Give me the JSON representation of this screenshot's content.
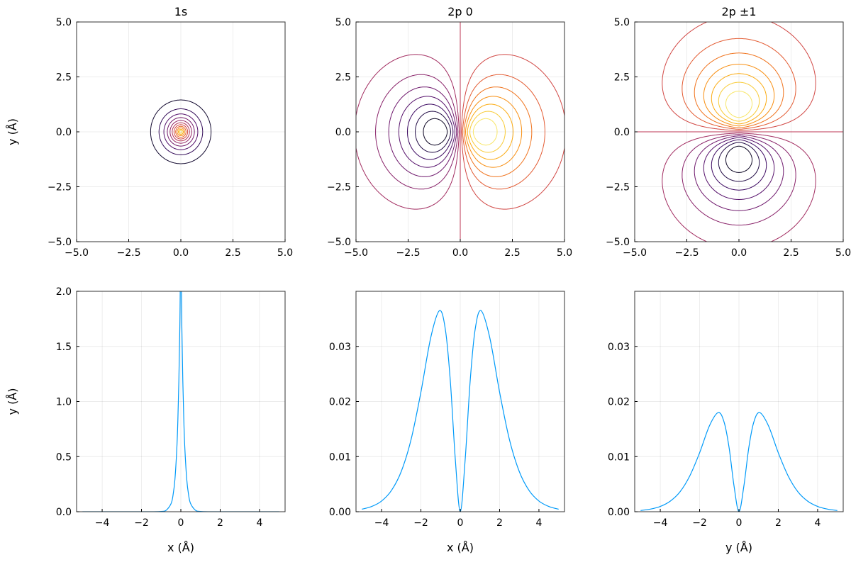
{
  "chart_data": [
    {
      "type": "contour",
      "title": "1s",
      "xlabel": "",
      "ylabel": "y (Å)",
      "xlim": [
        -5,
        5
      ],
      "ylim": [
        -5,
        5
      ],
      "xticks": [
        "−5.0",
        "−2.5",
        "0.0",
        "2.5",
        "5.0"
      ],
      "yticks": [
        "−5.0",
        "−2.5",
        "0.0",
        "2.5",
        "5.0"
      ],
      "tick_values": [
        -5,
        -2.5,
        0,
        2.5,
        5
      ],
      "model": {
        "kind": "s",
        "scale": 0.577
      },
      "levels": [
        0.081,
        0.163,
        0.244,
        0.325,
        0.407,
        0.488,
        0.569,
        0.65,
        0.732,
        0.813,
        0.894,
        0.976
      ],
      "colormap": "inferno",
      "color_range": [
        0,
        1
      ],
      "grid": true
    },
    {
      "type": "contour",
      "title": "2p 0",
      "xlabel": "",
      "ylabel": "",
      "xlim": [
        -5,
        5
      ],
      "ylim": [
        -5,
        5
      ],
      "xticks": [
        "−5.0",
        "−2.5",
        "0.0",
        "2.5",
        "5.0"
      ],
      "yticks": [
        "−5.0",
        "−2.5",
        "0.0",
        "2.5",
        "5.0"
      ],
      "tick_values": [
        -5,
        -2.5,
        0,
        2.5,
        5
      ],
      "model": {
        "kind": "px",
        "scale": 1.1
      },
      "levels": [
        -0.875,
        -0.75,
        -0.625,
        -0.5,
        -0.375,
        -0.25,
        -0.125,
        0,
        0.125,
        0.25,
        0.375,
        0.5,
        0.625,
        0.75,
        0.875
      ],
      "colormap": "inferno",
      "color_range": [
        -1,
        1
      ],
      "grid": true
    },
    {
      "type": "contour",
      "title": "2p ±1",
      "xlabel": "",
      "ylabel": "",
      "xlim": [
        -5,
        5
      ],
      "ylim": [
        -5,
        5
      ],
      "xticks": [
        "−5.0",
        "−2.5",
        "0.0",
        "2.5",
        "5.0"
      ],
      "yticks": [
        "−5.0",
        "−2.5",
        "0.0",
        "2.5",
        "5.0"
      ],
      "tick_values": [
        -5,
        -2.5,
        0,
        2.5,
        5
      ],
      "model": {
        "kind": "py",
        "scale": 1.15
      },
      "levels": [
        -0.875,
        -0.75,
        -0.625,
        -0.5,
        -0.375,
        -0.25,
        -0.125,
        0,
        0.125,
        0.25,
        0.375,
        0.5,
        0.625,
        0.75,
        0.875
      ],
      "colormap": "inferno",
      "color_range": [
        -1,
        1
      ],
      "grid": true
    },
    {
      "type": "line",
      "title": "",
      "xlabel": "x (Å)",
      "ylabel": "y (Å)",
      "xlim": [
        -5.3,
        5.3
      ],
      "ylim": [
        0,
        2
      ],
      "xtick_values": [
        -4,
        -2,
        0,
        2,
        4
      ],
      "xticks": [
        "−4",
        "−2",
        "0",
        "2",
        "4"
      ],
      "ytick_values": [
        0,
        0.5,
        1,
        1.5,
        2
      ],
      "yticks": [
        "0.0",
        "0.5",
        "1.0",
        "1.5",
        "2.0"
      ],
      "color": "#009af9",
      "x": [
        -5,
        -4,
        -3,
        -2,
        -1.5,
        -1,
        -0.75,
        -0.5,
        -0.4,
        -0.3,
        -0.2,
        -0.15,
        -0.1,
        -0.05,
        0,
        0.05,
        0.1,
        0.15,
        0.2,
        0.3,
        0.4,
        0.5,
        0.75,
        1,
        1.5,
        2,
        3,
        4,
        5
      ],
      "y": [
        0,
        0,
        0,
        0,
        0.0001,
        0.0022,
        0.0126,
        0.072,
        0.146,
        0.294,
        0.59,
        0.84,
        1.19,
        1.69,
        2.4,
        1.69,
        1.19,
        0.84,
        0.59,
        0.294,
        0.146,
        0.072,
        0.0126,
        0.0022,
        0.0001,
        0,
        0,
        0,
        0
      ]
    },
    {
      "type": "line",
      "title": "",
      "xlabel": "x (Å)",
      "ylabel": "",
      "xlim": [
        -5.3,
        5.3
      ],
      "ylim": [
        0,
        0.04
      ],
      "xtick_values": [
        -4,
        -2,
        0,
        2,
        4
      ],
      "xticks": [
        "−4",
        "−2",
        "0",
        "2",
        "4"
      ],
      "ytick_values": [
        0,
        0.01,
        0.02,
        0.03
      ],
      "yticks": [
        "0.00",
        "0.01",
        "0.02",
        "0.03"
      ],
      "color": "#009af9",
      "x": [
        -5,
        -4.5,
        -4,
        -3.5,
        -3,
        -2.5,
        -2,
        -1.5,
        -1.05,
        -0.75,
        -0.5,
        -0.25,
        0,
        0.25,
        0.5,
        0.75,
        1.05,
        1.5,
        2,
        2.5,
        3,
        3.5,
        4,
        4.5,
        5
      ],
      "y": [
        0.00045,
        0.00095,
        0.00194,
        0.00385,
        0.0073,
        0.0131,
        0.0217,
        0.0316,
        0.0365,
        0.0329,
        0.0235,
        0.00945,
        0,
        0.00945,
        0.0235,
        0.0329,
        0.0365,
        0.0316,
        0.0217,
        0.0131,
        0.0073,
        0.00385,
        0.00194,
        0.00095,
        0.00045
      ]
    },
    {
      "type": "line",
      "title": "",
      "xlabel": "y (Å)",
      "ylabel": "",
      "xlim": [
        -5.3,
        5.3
      ],
      "ylim": [
        0,
        0.04
      ],
      "xtick_values": [
        -4,
        -2,
        0,
        2,
        4
      ],
      "xticks": [
        "−4",
        "−2",
        "0",
        "2",
        "4"
      ],
      "ytick_values": [
        0,
        0.01,
        0.02,
        0.03
      ],
      "yticks": [
        "0.00",
        "0.01",
        "0.02",
        "0.03"
      ],
      "color": "#009af9",
      "x": [
        -5,
        -4.5,
        -4,
        -3.5,
        -3,
        -2.5,
        -2,
        -1.5,
        -1.05,
        -0.75,
        -0.5,
        -0.25,
        0,
        0.25,
        0.5,
        0.75,
        1.05,
        1.5,
        2,
        2.5,
        3,
        3.5,
        4,
        4.5,
        5
      ],
      "y": [
        0.00022,
        0.00047,
        0.00096,
        0.0019,
        0.0036,
        0.0065,
        0.0107,
        0.0156,
        0.018,
        0.0162,
        0.0116,
        0.00466,
        0,
        0.00466,
        0.0116,
        0.0162,
        0.018,
        0.0156,
        0.0107,
        0.0065,
        0.0036,
        0.0019,
        0.00096,
        0.00047,
        0.00022
      ]
    }
  ]
}
